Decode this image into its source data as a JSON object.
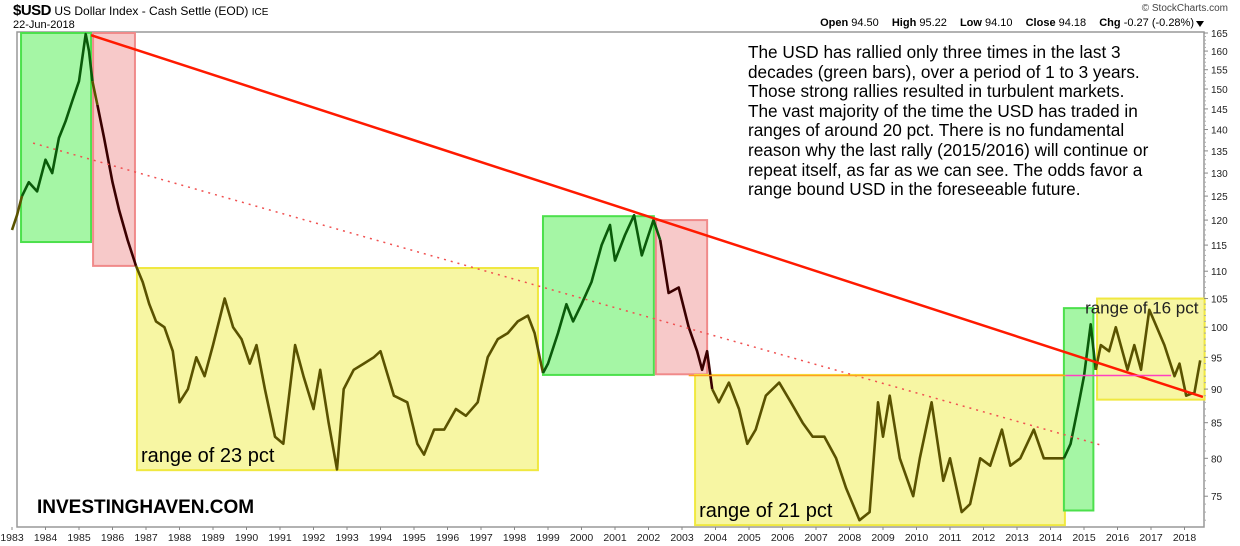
{
  "header": {
    "symbol": "$USD",
    "name": "US Dollar Index - Cash Settle (EOD)",
    "exchange": "ICE",
    "date": "22-Jun-2018",
    "copyright": "© StockCharts.com",
    "ohlc": {
      "open_label": "Open",
      "open": "94.50",
      "high_label": "High",
      "high": "95.22",
      "low_label": "Low",
      "low": "94.10",
      "close_label": "Close",
      "close": "94.18",
      "chg_label": "Chg",
      "chg": "-0.27 (-0.28%)",
      "dropdown_icon": "triangle-down-icon"
    }
  },
  "annotation_text": [
    "The USD has rallied only three times in the last 3",
    "decades (green bars), over a period of 1 to 3 years.",
    "Those strong rallies resulted in turbulent markets.",
    "The vast majority of the time the USD has traded in",
    "ranges of around 20 pct. There is no fundamental",
    "reason why the last rally (2015/2016) will continue or",
    "repeat itself, as far as we can see. The odds favor a",
    "range bound USD in the foreseeable future."
  ],
  "watermark": "INVESTINGHAVEN.COM",
  "colors": {
    "green_box": "#a0f5a0",
    "green_border": "#4ce04c",
    "red_box": "#f7c6c6",
    "red_border": "#f08a8a",
    "yellow_box": "#f7f59e",
    "yellow_border": "#f0e840",
    "price_green": "#0a5a0a",
    "price_red": "#3a0000",
    "price_yellow": "#5a5200",
    "trendline": "#ff1a00",
    "dotted": "#f05050",
    "horizontal": "#ffa020",
    "magenta": "#ff40c0"
  },
  "chart_data": {
    "type": "line",
    "title": "$USD US Dollar Index - Cash Settle (EOD)",
    "yscale": "log",
    "ylim": [
      70,
      167
    ],
    "xlim": [
      1982.85,
      2018.62
    ],
    "xlabel": "",
    "ylabel": "",
    "x_ticks": [
      "1983",
      "1984",
      "1985",
      "1986",
      "1987",
      "1988",
      "1989",
      "1990",
      "1991",
      "1992",
      "1993",
      "1994",
      "1995",
      "1996",
      "1997",
      "1998",
      "1999",
      "2000",
      "2001",
      "2002",
      "2003",
      "2004",
      "2005",
      "2006",
      "2007",
      "2008",
      "2009",
      "2010",
      "2011",
      "2012",
      "2013",
      "2014",
      "2015",
      "2016",
      "2017",
      "2018"
    ],
    "y_ticks": [
      165,
      160,
      155,
      150,
      145,
      140,
      135,
      130,
      125,
      120,
      115,
      110,
      105,
      100,
      95,
      90,
      85,
      80,
      75
    ],
    "grid": false,
    "series": [
      {
        "name": "$USD",
        "x": [
          1983.0,
          1983.15,
          1983.3,
          1983.5,
          1983.75,
          1984.0,
          1984.2,
          1984.4,
          1984.6,
          1984.8,
          1985.0,
          1985.2,
          1985.3,
          1985.4,
          1985.55,
          1985.75,
          1986.0,
          1986.2,
          1986.45,
          1986.7,
          1986.9,
          1987.1,
          1987.3,
          1987.55,
          1987.8,
          1988.0,
          1988.25,
          1988.5,
          1988.75,
          1989.0,
          1989.35,
          1989.6,
          1989.85,
          1990.1,
          1990.3,
          1990.55,
          1990.85,
          1991.1,
          1991.45,
          1991.7,
          1992.0,
          1992.2,
          1992.45,
          1992.7,
          1992.9,
          1993.2,
          1993.5,
          1993.8,
          1994.0,
          1994.4,
          1994.8,
          1995.1,
          1995.3,
          1995.6,
          1995.9,
          1996.25,
          1996.55,
          1996.9,
          1997.2,
          1997.5,
          1997.8,
          1998.1,
          1998.4,
          1998.6,
          1998.85,
          1999.0,
          1999.3,
          1999.55,
          1999.75,
          2000.0,
          2000.3,
          2000.6,
          2000.85,
          2001.0,
          2001.3,
          2001.57,
          2001.8,
          2002.0,
          2002.15,
          2002.35,
          2002.6,
          2002.9,
          2003.2,
          2003.45,
          2003.6,
          2003.75,
          2003.9,
          2004.1,
          2004.4,
          2004.7,
          2004.95,
          2005.2,
          2005.5,
          2005.9,
          2006.25,
          2006.6,
          2006.9,
          2007.25,
          2007.6,
          2007.9,
          2008.3,
          2008.6,
          2008.85,
          2009.0,
          2009.2,
          2009.5,
          2009.9,
          2010.1,
          2010.45,
          2010.8,
          2011.0,
          2011.35,
          2011.6,
          2011.9,
          2012.2,
          2012.55,
          2012.8,
          2013.1,
          2013.5,
          2013.8,
          2014.0,
          2014.4,
          2014.6,
          2014.85,
          2015.0,
          2015.2,
          2015.35,
          2015.5,
          2015.75,
          2015.95,
          2016.3,
          2016.5,
          2016.7,
          2016.95,
          2017.1,
          2017.4,
          2017.7,
          2017.85,
          2018.05,
          2018.3,
          2018.47
        ],
        "y": [
          118,
          121,
          125,
          128,
          126,
          133,
          130,
          138,
          142,
          147,
          152,
          164.7,
          160,
          152,
          146,
          138,
          128,
          122,
          116,
          111,
          108,
          104,
          101,
          100,
          96,
          88,
          90,
          95,
          92,
          97,
          105,
          100,
          98,
          94,
          97,
          90,
          83,
          82,
          97,
          92,
          87,
          93,
          85,
          78.5,
          90,
          93,
          94,
          95,
          96,
          89,
          88,
          82,
          80.5,
          84,
          84,
          87,
          86,
          88,
          95,
          98,
          99,
          101,
          102,
          99,
          92.5,
          94,
          99,
          104,
          101,
          104,
          108,
          115,
          119,
          112,
          117,
          121,
          113,
          117,
          120,
          116,
          106,
          107,
          100,
          96,
          93,
          96,
          90,
          88,
          91,
          87,
          82,
          84,
          89,
          91,
          88,
          85,
          83,
          83,
          80,
          76,
          72,
          73,
          88,
          83,
          89,
          80,
          75,
          80,
          88,
          77,
          80,
          73,
          74,
          80,
          79,
          84,
          79,
          80,
          84,
          80,
          80,
          80,
          82,
          88,
          92,
          100.5,
          93,
          97,
          96,
          100,
          93,
          97,
          93,
          103,
          101,
          97,
          92,
          94,
          89,
          89.5,
          94.5
        ]
      }
    ],
    "boxes": [
      {
        "type": "green",
        "x": [
          1983.27,
          1985.36
        ],
        "y": [
          115.6,
          165
        ]
      },
      {
        "type": "red",
        "x": [
          1985.42,
          1986.67
        ],
        "y": [
          111.0,
          165
        ]
      },
      {
        "type": "yellow",
        "x": [
          1986.73,
          1998.7
        ],
        "y": [
          78.4,
          110.6
        ],
        "label": "range of 23 pct"
      },
      {
        "type": "green",
        "x": [
          1998.85,
          2002.16
        ],
        "y": [
          92.2,
          120.8
        ]
      },
      {
        "type": "red",
        "x": [
          2002.22,
          2003.75
        ],
        "y": [
          92.3,
          120.0
        ]
      },
      {
        "type": "yellow",
        "x": [
          2003.39,
          2014.43
        ],
        "y": [
          71.4,
          92.2
        ],
        "label": "range of 21 pct"
      },
      {
        "type": "green",
        "x": [
          2014.4,
          2015.28
        ],
        "y": [
          73.2,
          103.3
        ]
      },
      {
        "type": "yellow",
        "x": [
          2015.39,
          2018.6
        ],
        "y": [
          88.4,
          105.0
        ],
        "label": "range of 16 pct"
      }
    ],
    "lines": [
      {
        "type": "trendline",
        "x": [
          1985.36,
          2018.55
        ],
        "y": [
          164.4,
          88.8
        ]
      },
      {
        "type": "dotted",
        "x": [
          1983.63,
          2015.6
        ],
        "y": [
          136.8,
          81.7
        ]
      },
      {
        "type": "horizontal",
        "x": [
          2003.2,
          2014.45
        ],
        "y": [
          92.1,
          92.1
        ]
      },
      {
        "type": "magenta",
        "x": [
          2014.45,
          2017.6
        ],
        "y": [
          92.1,
          92.1
        ]
      }
    ]
  }
}
